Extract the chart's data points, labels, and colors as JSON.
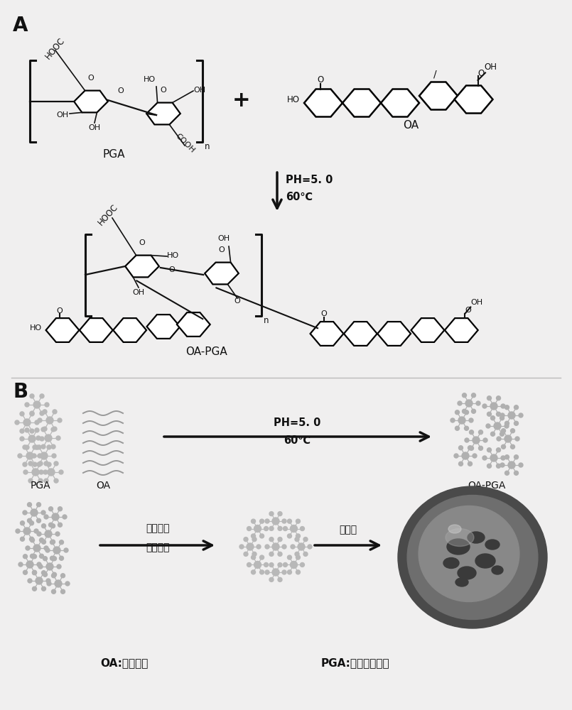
{
  "bg_color": "#f0efef",
  "panel_A_label": "A",
  "panel_B_label": "B",
  "reaction1_line1": "PH=5. 0",
  "reaction1_line2": "60℃",
  "reaction2_line1": "PH=5. 0",
  "reaction2_line2": "60℃",
  "plus_sign": "+",
  "PGA_label": "PGA",
  "OA_label": "OA",
  "OAPGA_label": "OA-PGA",
  "reaction3_label1": "氢氧化馒",
  "reaction3_label2": "碳酸氢钓",
  "reaction4_label": "自组装",
  "footnote1": "OA:齐墩果酸",
  "footnote2": "PGA:聚半乳糖醉酸",
  "font_color": "#111111",
  "gray_color": "#aaaaaa",
  "dark_color": "#333333",
  "mid_gray": "#888888"
}
